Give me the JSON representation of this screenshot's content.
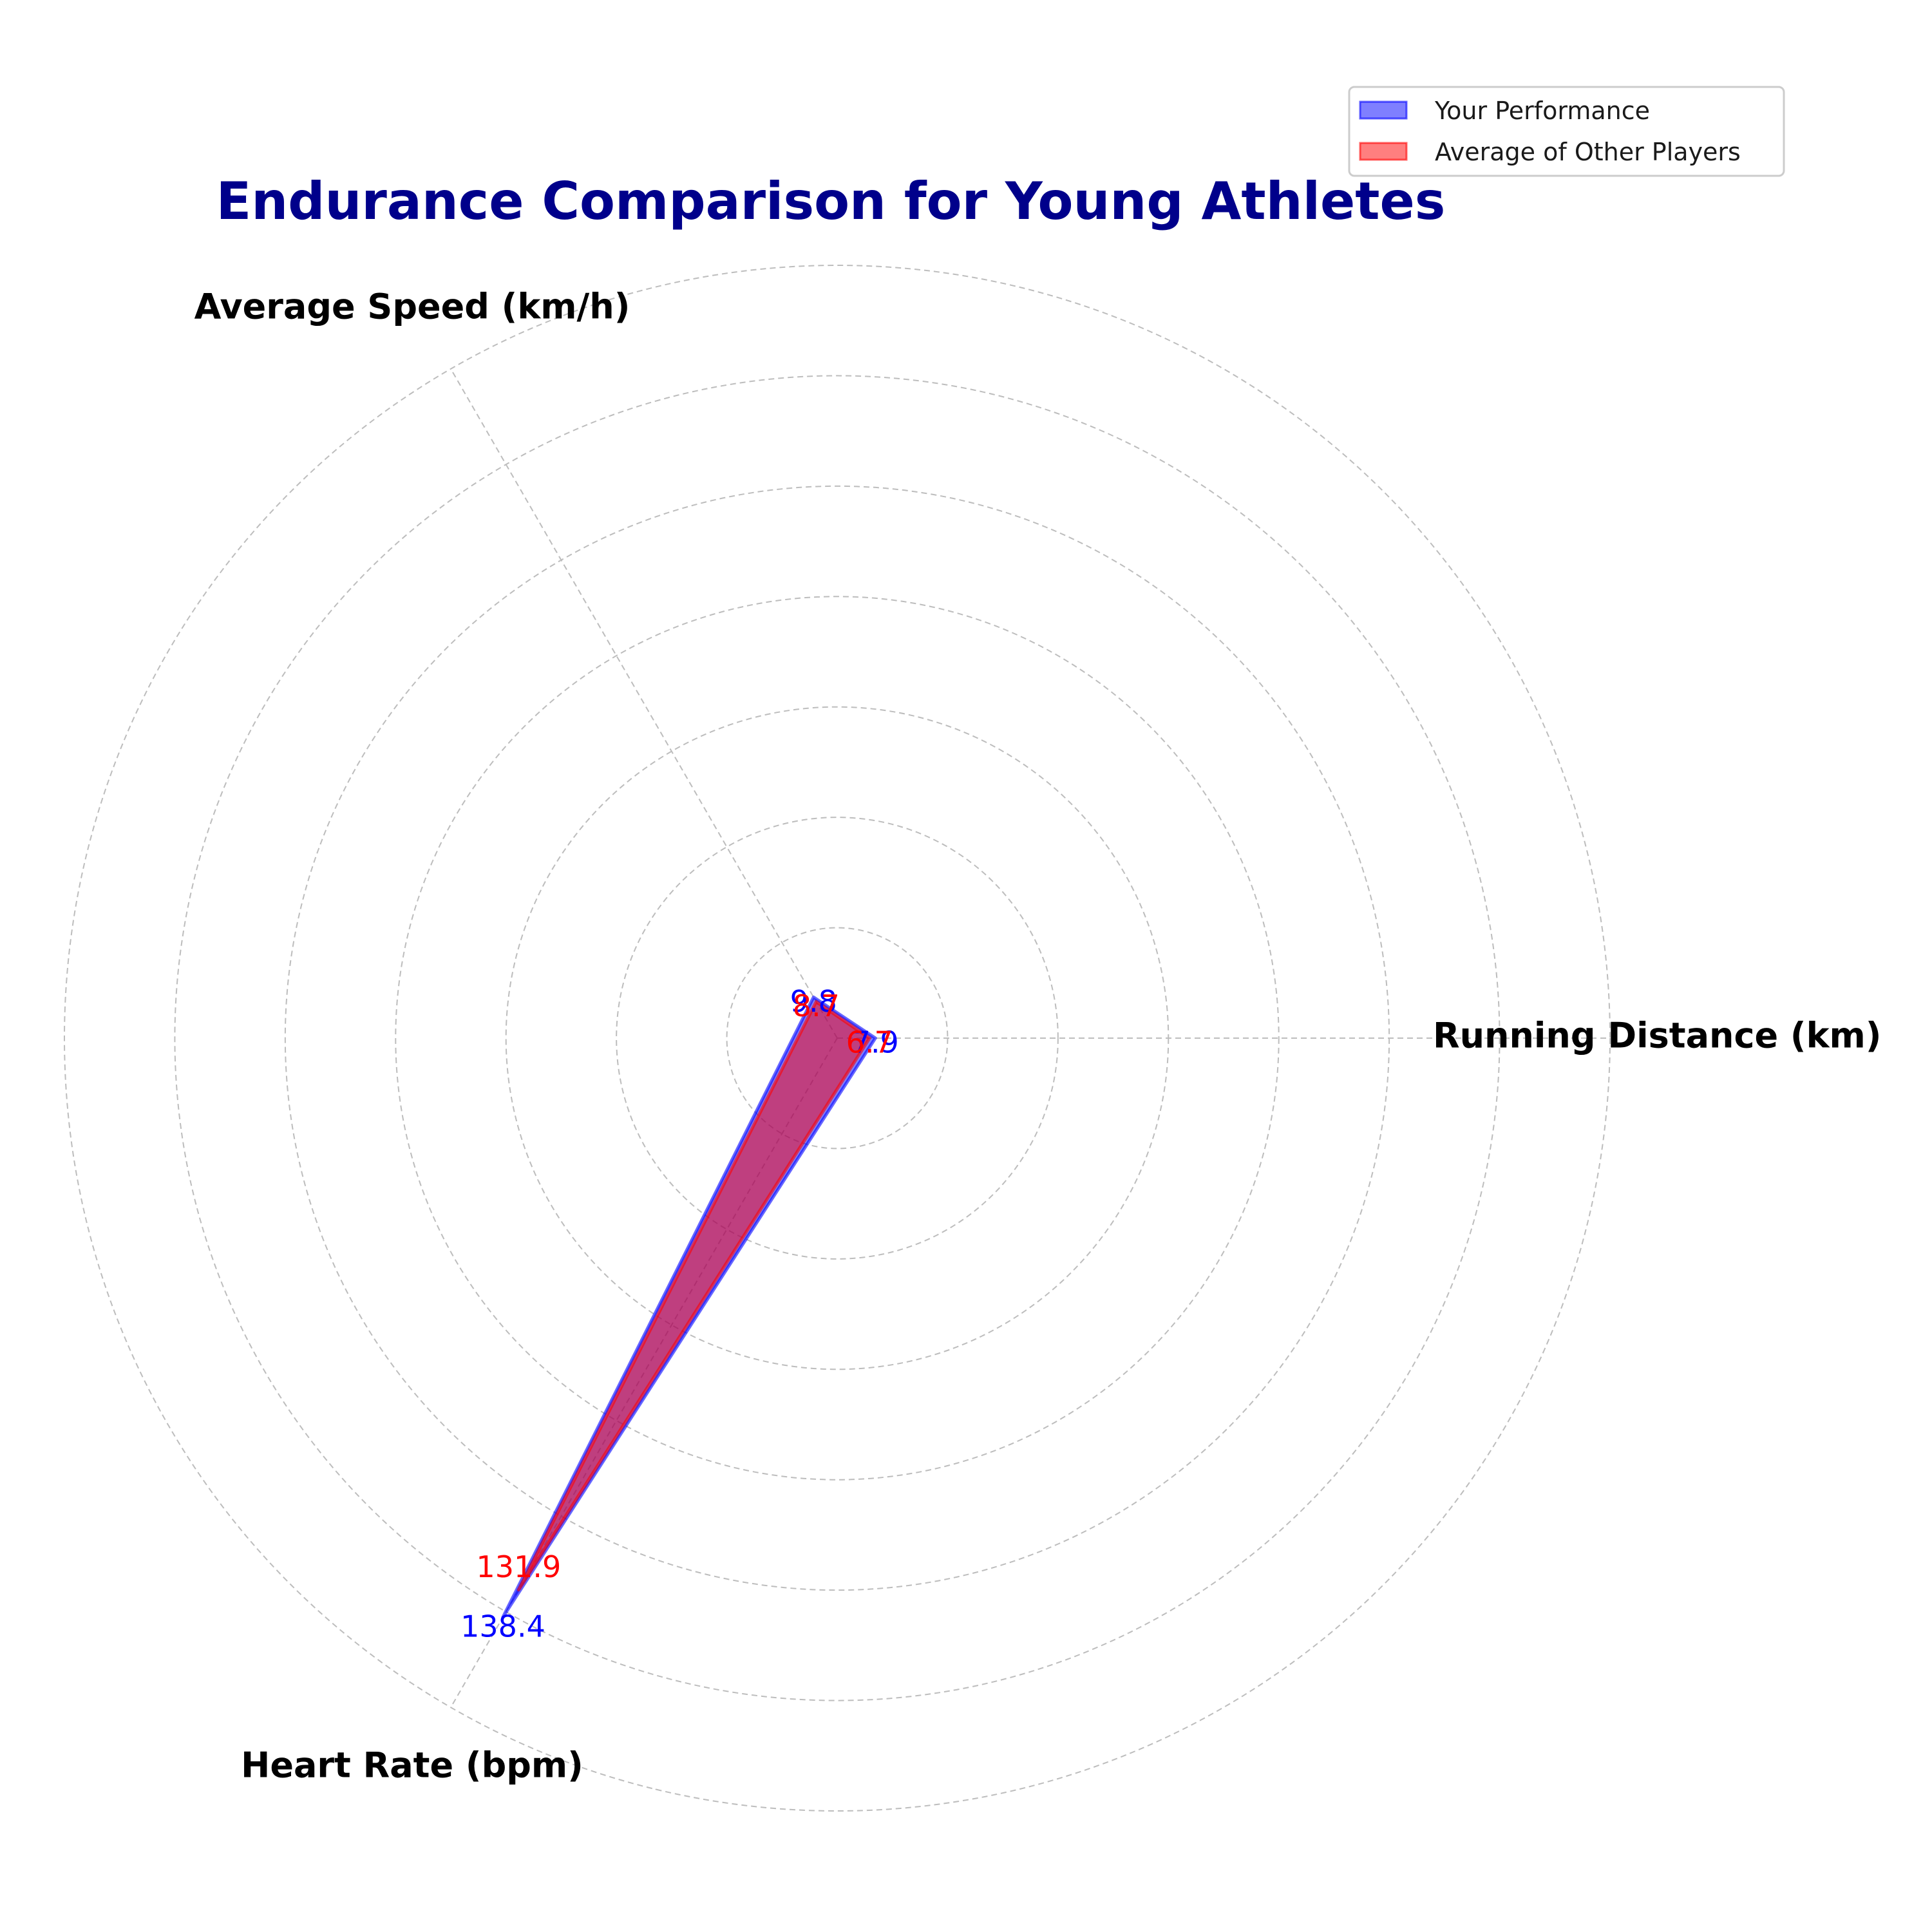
{
  "chart_data": {
    "type": "radar",
    "title": "Endurance Comparison for Young Athletes",
    "title_color": "#00008b",
    "categories": [
      "Running Distance (km)",
      "Average Speed (km/h)",
      "Heart Rate (bpm)"
    ],
    "series": [
      {
        "name": "Your Performance",
        "values": [
          7.9,
          9.8,
          138.4
        ],
        "color": "#0000ff",
        "fill_opacity": 0.5
      },
      {
        "name": "Average of Other Players",
        "values": [
          6.7,
          8.7,
          131.9
        ],
        "color": "#ff0000",
        "fill_opacity": 0.5
      }
    ],
    "value_labels": {
      "your": [
        "7.9",
        "9.8",
        "138.4"
      ],
      "others": [
        "6.7",
        "8.7",
        "131.9"
      ]
    },
    "rlim": [
      0,
      160
    ],
    "grid": true,
    "legend_position": "top-right"
  }
}
